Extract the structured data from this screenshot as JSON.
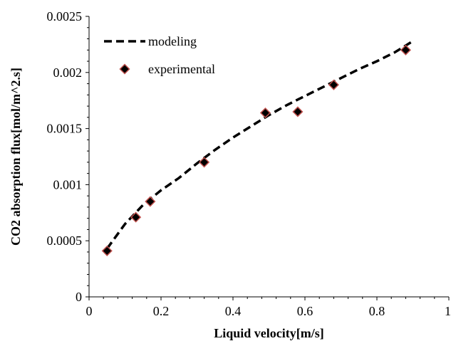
{
  "chart_data": {
    "type": "scatter",
    "title": "",
    "xlabel": "Liquid velocity[m/s]",
    "ylabel": "CO2  absorption flux[mol/m^2.s]",
    "xlim": [
      0,
      1
    ],
    "ylim": [
      0,
      0.0025
    ],
    "x_ticks": [
      "0",
      "0.2",
      "0.4",
      "0.6",
      "0.8",
      "1"
    ],
    "y_ticks": [
      "0",
      "0.0005",
      "0.001",
      "0.0015",
      "0.002",
      "0.0025"
    ],
    "grid": false,
    "legend_position": "top-left",
    "series": [
      {
        "name": "modeling",
        "type": "line",
        "style": "dashed",
        "color": "#000000",
        "x": [
          0.05,
          0.1,
          0.15,
          0.2,
          0.25,
          0.3,
          0.35,
          0.4,
          0.45,
          0.5,
          0.55,
          0.6,
          0.65,
          0.7,
          0.75,
          0.8,
          0.85,
          0.9
        ],
        "y": [
          0.00043,
          0.00065,
          0.00082,
          0.00095,
          0.00106,
          0.00119,
          0.00131,
          0.00142,
          0.00152,
          0.00162,
          0.00171,
          0.00179,
          0.00187,
          0.00195,
          0.00203,
          0.0021,
          0.00218,
          0.00228
        ]
      },
      {
        "name": "experimental",
        "type": "scatter",
        "marker": "diamond",
        "color": "#000000",
        "edge_color": "#c0504d",
        "x": [
          0.05,
          0.13,
          0.17,
          0.32,
          0.49,
          0.58,
          0.68,
          0.88
        ],
        "y": [
          0.00041,
          0.00071,
          0.00085,
          0.0012,
          0.00164,
          0.00165,
          0.00189,
          0.0022
        ]
      }
    ]
  }
}
